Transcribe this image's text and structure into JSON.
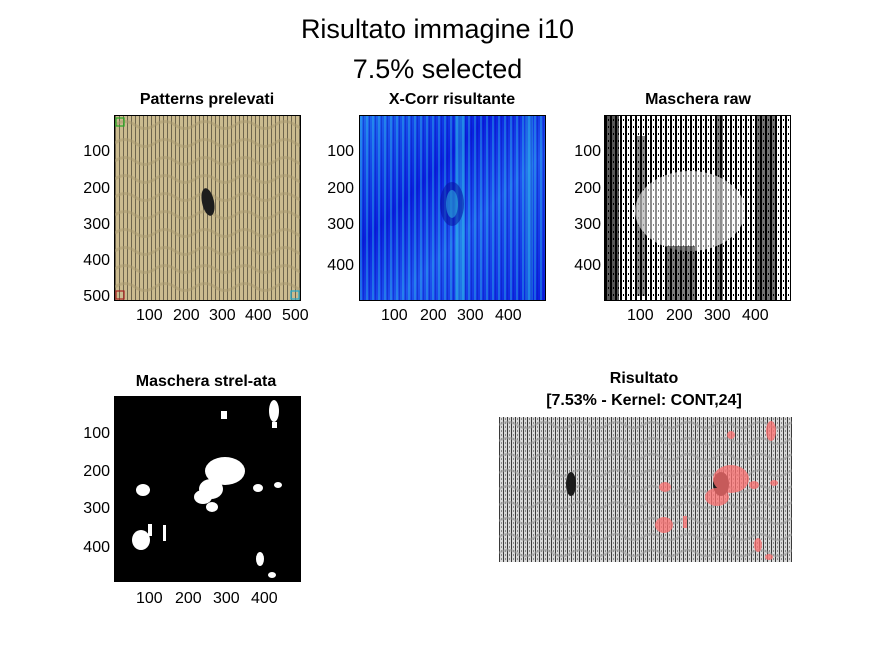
{
  "figure": {
    "title_line1": "Risultato immagine i10",
    "title_line2": "7.5% selected"
  },
  "panels": {
    "patterns": {
      "title": "Patterns prelevati",
      "yticks": [
        "100",
        "200",
        "300",
        "400",
        "500"
      ],
      "xticks": [
        "100",
        "200",
        "300",
        "400",
        "500"
      ],
      "base_color": "#cbbb8f",
      "marker_colors": [
        "#22aa22",
        "#aa2222",
        "#22aacc"
      ]
    },
    "xcorr": {
      "title": "X-Corr risultante",
      "yticks": [
        "100",
        "200",
        "300",
        "400"
      ],
      "xticks": [
        "100",
        "200",
        "300",
        "400"
      ],
      "colormap": [
        "#0a1fe0",
        "#1f6bf0",
        "#32d0e8"
      ]
    },
    "raw_mask": {
      "title": "Maschera raw",
      "yticks": [
        "100",
        "200",
        "300",
        "400"
      ],
      "xticks": [
        "100",
        "200",
        "300",
        "400"
      ]
    },
    "strel_mask": {
      "title": "Maschera strel-ata",
      "yticks": [
        "100",
        "200",
        "300",
        "400"
      ],
      "xticks": [
        "100",
        "200",
        "300",
        "400"
      ]
    },
    "result": {
      "title_line1": "Risultato",
      "title_line2": "[7.53% - Kernel: CONT,24]",
      "highlight_color": "#ff7070"
    }
  }
}
